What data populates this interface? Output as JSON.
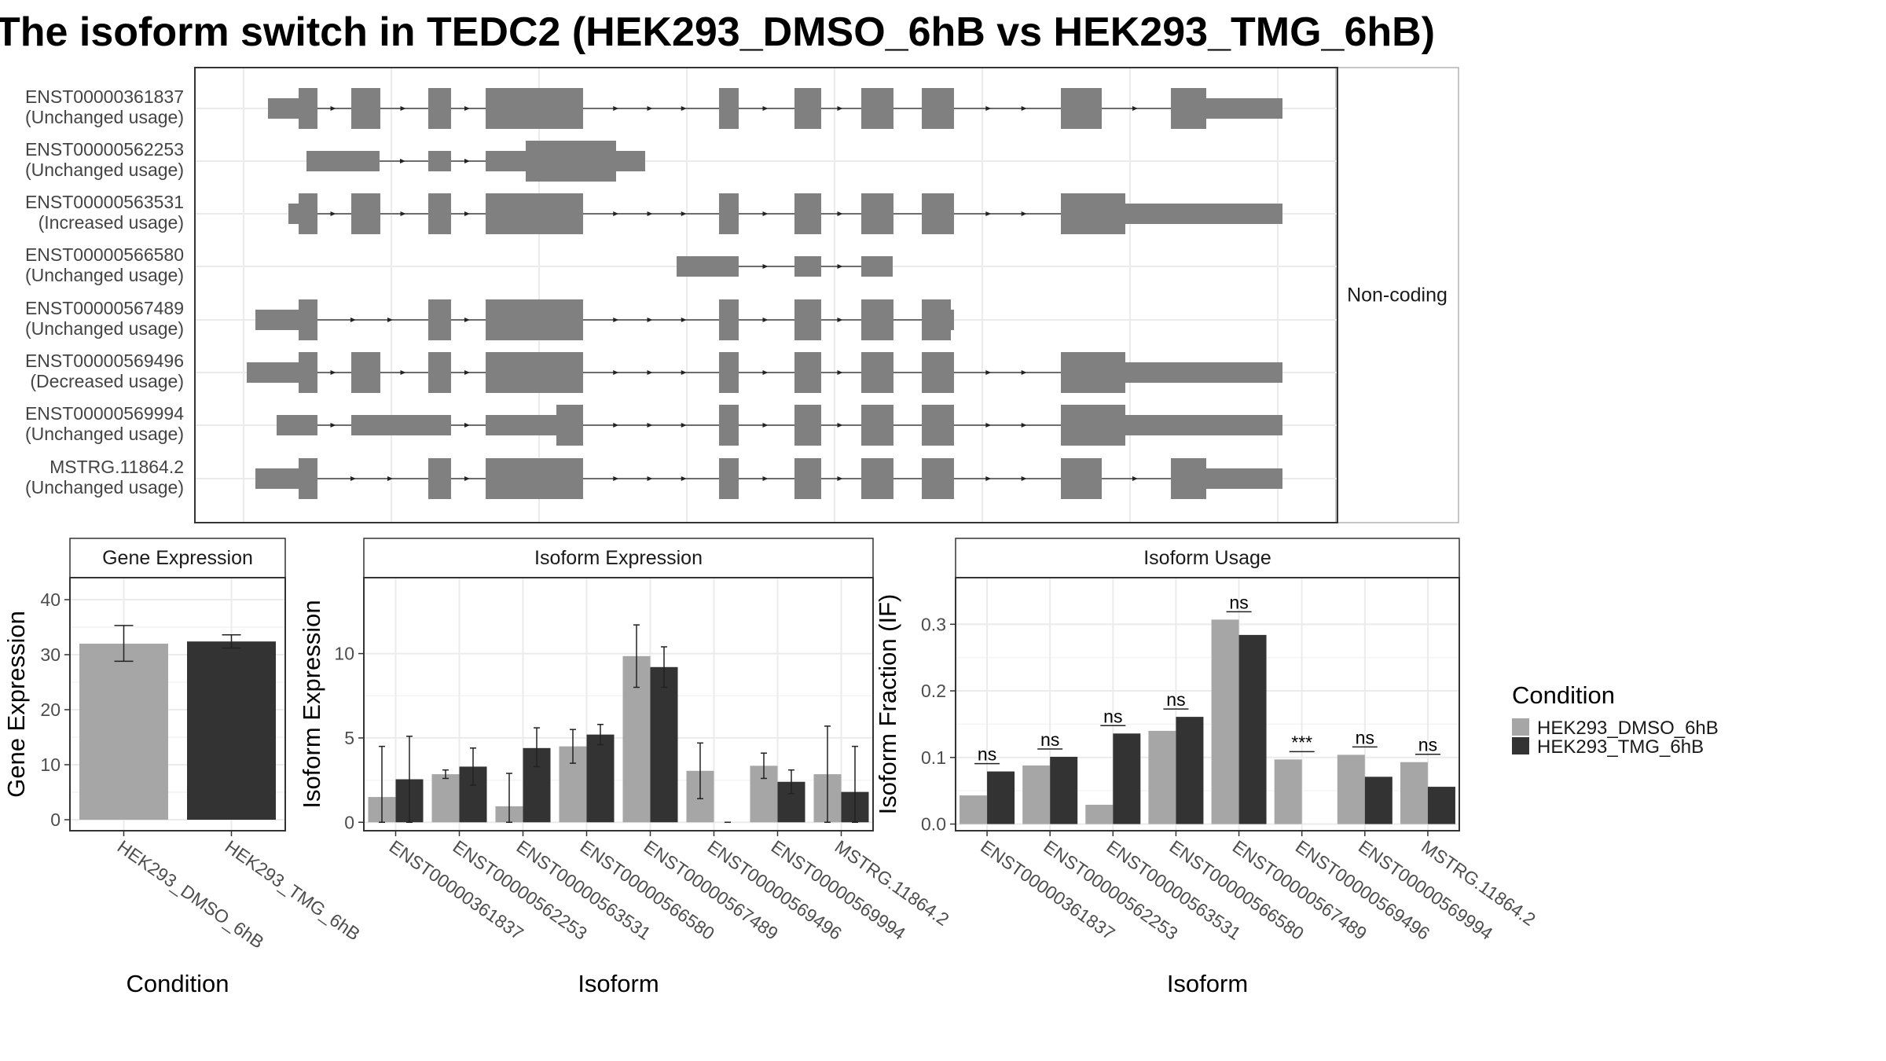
{
  "title": "The isoform switch in TEDC2 (HEK293_DMSO_6hB vs HEK293_TMG_6hB)",
  "colors": {
    "dmso": "#a6a6a6",
    "tmg": "#333333",
    "exon": "#808080",
    "grid": "#ebebeb",
    "panel_border": "#333333"
  },
  "transcript_panel": {
    "facet_label": "Non-coding",
    "transcripts": [
      {
        "id": "ENST00000361837",
        "status": "(Unchanged usage)"
      },
      {
        "id": "ENST00000562253",
        "status": "(Unchanged usage)"
      },
      {
        "id": "ENST00000563531",
        "status": "(Increased usage)"
      },
      {
        "id": "ENST00000566580",
        "status": "(Unchanged usage)"
      },
      {
        "id": "ENST00000567489",
        "status": "(Unchanged usage)"
      },
      {
        "id": "ENST00000569496",
        "status": "(Decreased usage)"
      },
      {
        "id": "ENST00000569994",
        "status": "(Unchanged usage)"
      },
      {
        "id": "MSTRG.11864.2",
        "status": "(Unchanged usage)"
      }
    ]
  },
  "legend": {
    "title": "Condition",
    "items": [
      {
        "label": "HEK293_DMSO_6hB",
        "color": "#a6a6a6"
      },
      {
        "label": "HEK293_TMG_6hB",
        "color": "#333333"
      }
    ]
  },
  "chart_data": [
    {
      "type": "bar",
      "title": "Gene Expression",
      "xlabel": "Condition",
      "ylabel": "Gene Expression",
      "ylim": [
        -2,
        44
      ],
      "yticks": [
        0,
        10,
        20,
        30,
        40
      ],
      "categories": [
        "HEK293_DMSO_6hB",
        "HEK293_TMG_6hB"
      ],
      "values": [
        32.0,
        32.4
      ],
      "error_low": [
        28.8,
        31.2
      ],
      "error_high": [
        35.3,
        33.6
      ]
    },
    {
      "type": "bar",
      "title": "Isoform Expression",
      "xlabel": "Isoform",
      "ylabel": "Isoform Expression",
      "ylim": [
        -0.5,
        14.5
      ],
      "yticks": [
        0,
        5,
        10
      ],
      "categories": [
        "ENST00000361837",
        "ENST00000562253",
        "ENST00000563531",
        "ENST00000566580",
        "ENST00000567489",
        "ENST00000569496",
        "ENST00000569994",
        "MSTRG.11864.2"
      ],
      "series": [
        {
          "name": "HEK293_DMSO_6hB",
          "values": [
            1.5,
            2.85,
            0.95,
            4.5,
            9.85,
            3.05,
            3.35,
            2.85
          ],
          "error_low": [
            0,
            2.6,
            0,
            3.5,
            8.0,
            1.4,
            2.6,
            0
          ],
          "error_high": [
            4.5,
            3.1,
            2.9,
            5.5,
            11.7,
            4.7,
            4.1,
            5.7
          ]
        },
        {
          "name": "HEK293_TMG_6hB",
          "values": [
            2.55,
            3.3,
            4.4,
            5.2,
            9.2,
            0.0,
            2.4,
            1.8
          ],
          "error_low": [
            0,
            2.2,
            3.3,
            4.6,
            8.0,
            0,
            1.7,
            0
          ],
          "error_high": [
            5.1,
            4.4,
            5.6,
            5.8,
            10.4,
            0,
            3.1,
            4.5
          ]
        }
      ]
    },
    {
      "type": "bar",
      "title": "Isoform Usage",
      "xlabel": "Isoform",
      "ylabel": "Isoform Fraction (IF)",
      "ylim": [
        -0.01,
        0.37
      ],
      "yticks": [
        0.0,
        0.1,
        0.2,
        0.3
      ],
      "ytick_labels": [
        "0.0",
        "0.1",
        "0.2",
        "0.3"
      ],
      "categories": [
        "ENST00000361837",
        "ENST00000562253",
        "ENST00000563531",
        "ENST00000566580",
        "ENST00000567489",
        "ENST00000569496",
        "ENST00000569994",
        "MSTRG.11864.2"
      ],
      "significance": [
        "ns",
        "ns",
        "ns",
        "ns",
        "ns",
        "***",
        "ns",
        "ns"
      ],
      "series": [
        {
          "name": "HEK293_DMSO_6hB",
          "values": [
            0.043,
            0.088,
            0.029,
            0.14,
            0.307,
            0.097,
            0.104,
            0.093
          ]
        },
        {
          "name": "HEK293_TMG_6hB",
          "values": [
            0.079,
            0.101,
            0.136,
            0.161,
            0.284,
            0.0,
            0.071,
            0.056
          ]
        }
      ]
    }
  ]
}
